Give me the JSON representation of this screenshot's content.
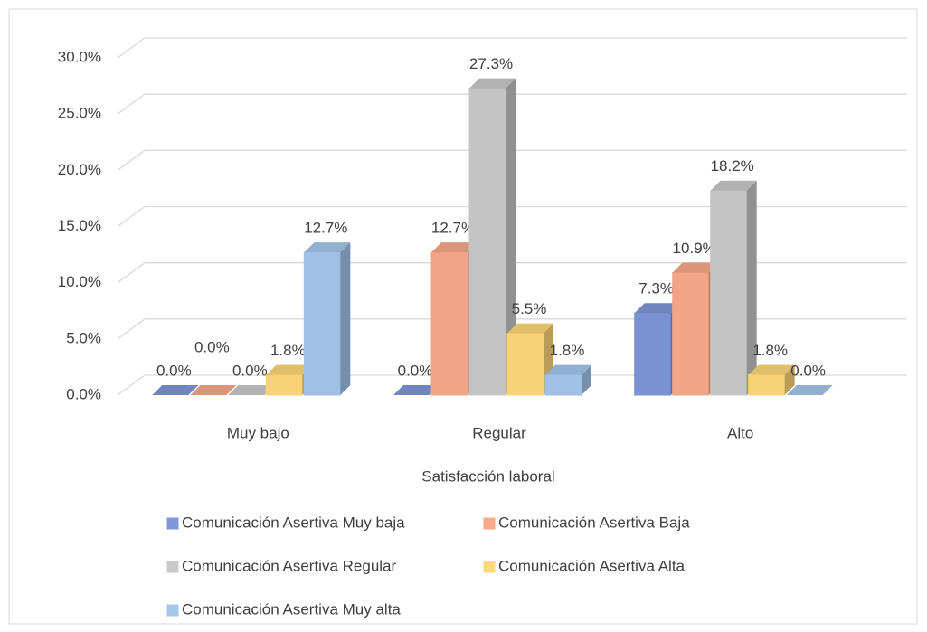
{
  "chart_data": {
    "type": "bar3d",
    "x_label": "Satisfacción laboral",
    "categories": [
      "Muy bajo",
      "Regular",
      "Alto"
    ],
    "series": [
      {
        "name": "Comunicación Asertiva Muy baja",
        "color": "#7f97d8",
        "values": [
          0,
          0,
          7.3
        ],
        "value_labels": [
          "0.0%",
          "0.0%",
          "7.3%"
        ]
      },
      {
        "name": "Comunicación Asertiva Baja",
        "color": "#f9aa8a",
        "values": [
          0,
          12.7,
          10.9
        ],
        "value_labels": [
          "0.0%",
          "12.7%",
          "10.9%"
        ]
      },
      {
        "name": "Comunicación Asertiva Regular",
        "color": "#cacaca",
        "values": [
          0,
          27.3,
          18.2
        ],
        "value_labels": [
          "0.0%",
          "27.3%",
          "18.2%"
        ]
      },
      {
        "name": "Comunicación Asertiva Alta",
        "color": "#ffd97a",
        "values": [
          1.8,
          5.5,
          1.8
        ],
        "value_labels": [
          "1.8%",
          "5.5%",
          "1.8%"
        ]
      },
      {
        "name": "Comunicación Asertiva Muy alta",
        "color": "#a5c7ec",
        "values": [
          12.7,
          1.8,
          0
        ],
        "value_labels": [
          "12.7%",
          "1.8%",
          "0.0%"
        ]
      }
    ],
    "ylim": [
      0,
      30
    ],
    "yticks": [
      {
        "value": 0,
        "label": "0.0%"
      },
      {
        "value": 5,
        "label": "5.0%"
      },
      {
        "value": 10,
        "label": "10.0%"
      },
      {
        "value": 15,
        "label": "15.0%"
      },
      {
        "value": 20,
        "label": "20.0%"
      },
      {
        "value": 25,
        "label": "25.0%"
      },
      {
        "value": 30,
        "label": "30.0%"
      }
    ],
    "grid": true,
    "legend": "bottom"
  }
}
